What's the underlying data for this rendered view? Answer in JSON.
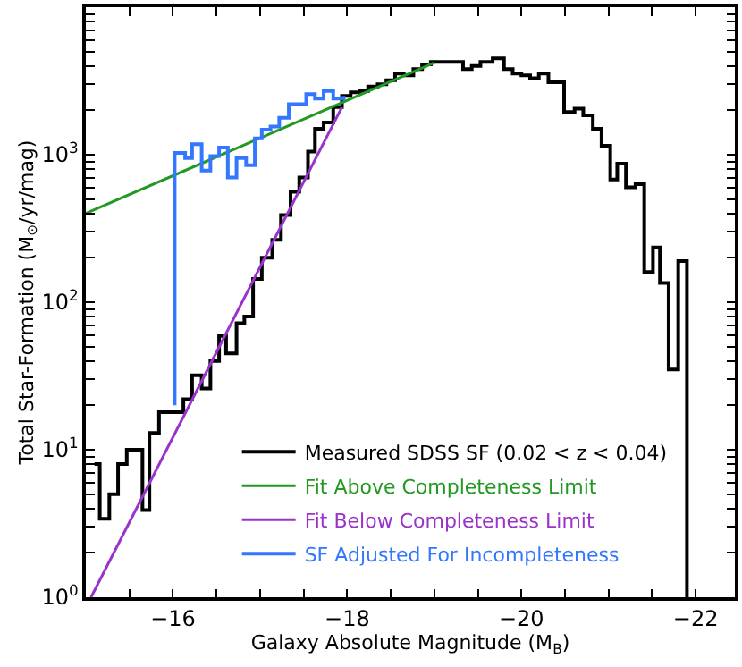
{
  "chart_data": {
    "type": "step",
    "xlabel": "Galaxy Absolute Magnitude (M$_{B}$)",
    "ylabel": "Total Star-Formation (M$_{⊙}$/yr/mag)",
    "log": "y",
    "legend": "bottom right",
    "xlim": [
      -15,
      -22.45
    ],
    "ylim": [
      1,
      10000
    ],
    "xticks": [
      {
        "value": -15,
        "label": null
      },
      {
        "value": -15.5,
        "label": null
      },
      {
        "value": -16,
        "label": "−16"
      },
      {
        "value": -16.5,
        "label": null
      },
      {
        "value": -17,
        "label": null
      },
      {
        "value": -17.5,
        "label": null
      },
      {
        "value": -18,
        "label": "−18"
      },
      {
        "value": -18.5,
        "label": null
      },
      {
        "value": -19,
        "label": null
      },
      {
        "value": -19.5,
        "label": null
      },
      {
        "value": -20,
        "label": "−20"
      },
      {
        "value": -20.5,
        "label": null
      },
      {
        "value": -21,
        "label": null
      },
      {
        "value": -21.5,
        "label": null
      },
      {
        "value": -22,
        "label": "−22"
      }
    ],
    "yticks": [
      {
        "value": 1,
        "label": "10$^{0}$"
      },
      {
        "value": 2,
        "label": null
      },
      {
        "value": 3,
        "label": null
      },
      {
        "value": 4,
        "label": null
      },
      {
        "value": 5,
        "label": null
      },
      {
        "value": 6,
        "label": null
      },
      {
        "value": 7,
        "label": null
      },
      {
        "value": 8,
        "label": null
      },
      {
        "value": 9,
        "label": null
      },
      {
        "value": 10,
        "label": "10$^{1}$"
      },
      {
        "value": 20,
        "label": null
      },
      {
        "value": 30,
        "label": null
      },
      {
        "value": 40,
        "label": null
      },
      {
        "value": 50,
        "label": null
      },
      {
        "value": 60,
        "label": null
      },
      {
        "value": 70,
        "label": null
      },
      {
        "value": 80,
        "label": null
      },
      {
        "value": 90,
        "label": null
      },
      {
        "value": 100,
        "label": "10$^{2}$"
      },
      {
        "value": 200,
        "label": null
      },
      {
        "value": 300,
        "label": null
      },
      {
        "value": 400,
        "label": null
      },
      {
        "value": 500,
        "label": null
      },
      {
        "value": 600,
        "label": null
      },
      {
        "value": 700,
        "label": null
      },
      {
        "value": 800,
        "label": null
      },
      {
        "value": 900,
        "label": null
      },
      {
        "value": 1000,
        "label": "10$^{3}$"
      },
      {
        "value": 2000,
        "label": null
      },
      {
        "value": 3000,
        "label": null
      },
      {
        "value": 4000,
        "label": null
      },
      {
        "value": 5000,
        "label": null
      },
      {
        "value": 6000,
        "label": null
      },
      {
        "value": 7000,
        "label": null
      },
      {
        "value": 8000,
        "label": null
      },
      {
        "value": 9000,
        "label": null
      }
    ],
    "series": [
      {
        "name": "Measured SDSS SF (0.02 < z < 0.04)",
        "color": "#000000",
        "x": [
          -15.1,
          -15.16,
          -15.27,
          -15.37,
          -15.47,
          -15.65,
          -15.73,
          -15.84,
          -16.12,
          -16.22,
          -16.33,
          -16.43,
          -16.53,
          -16.61,
          -16.73,
          -16.82,
          -16.92,
          -17.02,
          -17.14,
          -17.24,
          -17.35,
          -17.45,
          -17.55,
          -17.63,
          -17.73,
          -17.84,
          -17.94,
          -18.04,
          -18.14,
          -18.24,
          -18.35,
          -18.45,
          -18.55,
          -18.65,
          -18.76,
          -18.86,
          -18.96,
          -19.12,
          -19.33,
          -19.43,
          -19.53,
          -19.67,
          -19.8,
          -19.9,
          -20.0,
          -20.1,
          -20.2,
          -20.31,
          -20.49,
          -20.61,
          -20.71,
          -20.82,
          -20.92,
          -21.02,
          -21.1,
          -21.2,
          -21.31,
          -21.41,
          -21.51,
          -21.59,
          -21.69,
          -21.8,
          -21.9
        ],
        "values": [
          8,
          3.4,
          5,
          8,
          10,
          3.9,
          13,
          18,
          22,
          32,
          26,
          40,
          59,
          45,
          72,
          80,
          144,
          200,
          265,
          390,
          560,
          700,
          1050,
          1500,
          1650,
          2100,
          2500,
          2650,
          2700,
          2900,
          3000,
          3200,
          3550,
          3450,
          3800,
          4100,
          4250,
          4250,
          3800,
          4000,
          4250,
          4500,
          3800,
          3550,
          3450,
          3300,
          3550,
          3100,
          1950,
          2050,
          1850,
          1500,
          1150,
          680,
          870,
          600,
          630,
          160,
          235,
          135,
          35,
          190,
          1
        ]
      },
      {
        "name": "Fit Above Completeness Limit",
        "color": "#229922",
        "type": "line",
        "x": [
          -15,
          -19
        ],
        "values": [
          400,
          4200
        ]
      },
      {
        "name": "Fit Below Completeness Limit",
        "color": "#9933cc",
        "type": "line",
        "x": [
          -15.06,
          -17.94
        ],
        "values": [
          1,
          2100
        ]
      },
      {
        "name": "SF Adjusted For Incompleteness",
        "color": "#3377ff",
        "x": [
          -16.02,
          -16.02,
          -16.14,
          -16.22,
          -16.33,
          -16.43,
          -16.53,
          -16.63,
          -16.73,
          -16.84,
          -16.94,
          -17.02,
          -17.12,
          -17.22,
          -17.33,
          -17.43,
          -17.53,
          -17.63,
          -17.73,
          -17.84,
          -17.96
        ],
        "values": [
          20,
          1030,
          950,
          1180,
          780,
          980,
          1120,
          700,
          950,
          850,
          1290,
          1480,
          1550,
          1780,
          2200,
          2200,
          2570,
          2400,
          2700,
          2400,
          2500
        ]
      }
    ]
  }
}
